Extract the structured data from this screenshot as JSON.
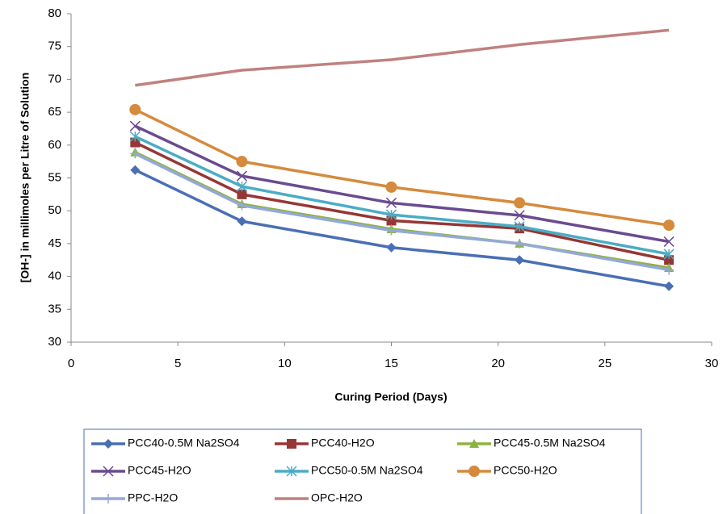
{
  "chart_data": {
    "type": "line",
    "x_label": "Curing Period (Days)",
    "y_label": "[OH-] in millimoles per Litre of Solution",
    "x": [
      3,
      8,
      15,
      21,
      28
    ],
    "xlim": [
      0,
      30
    ],
    "xticks": [
      0,
      5,
      10,
      15,
      20,
      25,
      30
    ],
    "ylim": [
      30,
      80
    ],
    "yticks": [
      30,
      35,
      40,
      45,
      50,
      55,
      60,
      65,
      70,
      75,
      80
    ],
    "grid": false,
    "legend": "bottom",
    "series": [
      {
        "name": "PCC40-0.5M Na2SO4",
        "color": "#4a6fb5",
        "marker": "diamond",
        "values": [
          56.2,
          48.4,
          44.4,
          42.5,
          38.5
        ]
      },
      {
        "name": "PCC40-H2O",
        "color": "#953735",
        "marker": "square",
        "values": [
          60.4,
          52.5,
          48.5,
          47.3,
          42.5
        ]
      },
      {
        "name": "PCC45-0.5M Na2SO4",
        "color": "#8db33f",
        "marker": "triangle",
        "values": [
          58.9,
          51.0,
          47.2,
          45.0,
          41.3
        ]
      },
      {
        "name": "PCC45-H2O",
        "color": "#6a4b8f",
        "marker": "x",
        "values": [
          62.9,
          55.3,
          51.2,
          49.3,
          45.3
        ]
      },
      {
        "name": "PCC50-0.5M Na2SO4",
        "color": "#4bacc6",
        "marker": "star",
        "values": [
          61.3,
          53.7,
          49.4,
          47.6,
          43.4
        ]
      },
      {
        "name": "PCC50-H2O",
        "color": "#d58a3c",
        "marker": "circle",
        "values": [
          65.4,
          57.5,
          53.6,
          51.2,
          47.8
        ]
      },
      {
        "name": "PPC-H2O",
        "color": "#94a9d6",
        "marker": "plus",
        "values": [
          58.7,
          50.8,
          47.0,
          45.0,
          41.0
        ]
      },
      {
        "name": "OPC-H2O",
        "color": "#c0817f",
        "marker": "none",
        "values": [
          69.1,
          71.4,
          73.0,
          75.3,
          77.5
        ]
      }
    ]
  }
}
